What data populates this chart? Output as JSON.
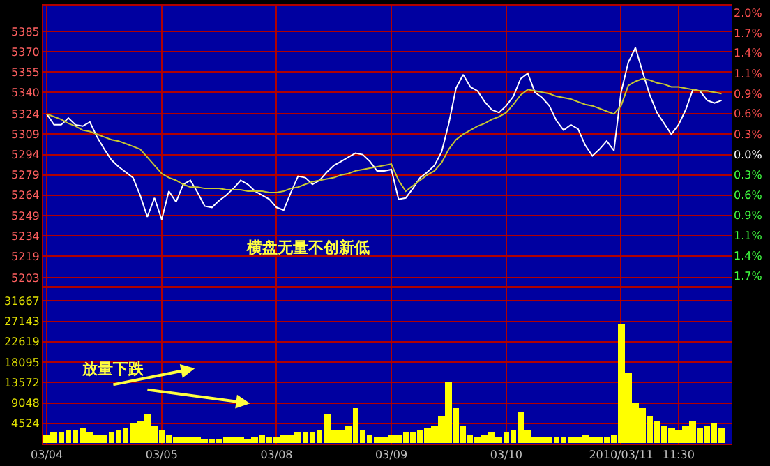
{
  "chart_data": [
    {
      "type": "line",
      "categories": [
        null,
        null,
        null,
        null,
        null,
        null,
        null,
        null,
        null,
        null,
        null,
        null,
        null,
        null,
        null,
        null,
        null,
        null,
        null,
        null,
        null,
        null,
        null,
        null,
        null,
        null,
        null,
        null,
        null,
        null,
        null,
        null,
        null,
        null,
        null,
        null,
        null,
        null,
        null,
        null,
        null,
        null,
        null,
        null,
        null,
        null,
        null,
        null,
        null,
        null,
        null,
        null,
        null,
        null,
        null,
        null,
        null,
        null,
        null,
        null,
        null,
        null,
        null,
        null,
        null,
        null,
        null,
        null,
        null,
        null,
        null,
        null,
        null,
        null,
        null,
        null,
        null,
        null,
        null,
        null,
        null,
        null,
        null,
        null,
        null,
        null,
        null,
        null,
        null,
        null,
        null,
        null,
        null,
        null,
        null,
        null
      ],
      "ylim": [
        5197,
        5404
      ],
      "y2lim": [
        -1.84,
        2.08
      ],
      "yticks": [
        5385,
        5370,
        5355,
        5340,
        5324,
        5309,
        5294,
        5279,
        5264,
        5249,
        5234,
        5219,
        5203
      ],
      "y2ticks": [
        {
          "value": 1.98,
          "label": "2.0%"
        },
        {
          "value": 1.7,
          "label": "1.7%"
        },
        {
          "value": 1.42,
          "label": "1.4%"
        },
        {
          "value": 1.13,
          "label": "1.1%"
        },
        {
          "value": 0.85,
          "label": "0.9%"
        },
        {
          "value": 0.57,
          "label": "0.6%"
        },
        {
          "value": 0.28,
          "label": "0.3%"
        },
        {
          "value": 0,
          "label": "0.0%"
        },
        {
          "value": -0.28,
          "label": "0.3%"
        },
        {
          "value": -0.57,
          "label": "0.6%"
        },
        {
          "value": -0.85,
          "label": "0.9%"
        },
        {
          "value": -1.13,
          "label": "1.1%"
        },
        {
          "value": -1.42,
          "label": "1.4%"
        },
        {
          "value": -1.7,
          "label": "1.7%"
        }
      ],
      "tick_labels": "y",
      "grid": true,
      "series": [
        {
          "color": "#ffffff",
          "values": [
            5324,
            5316,
            5316,
            5321,
            5316,
            5315,
            5318,
            5307,
            5298,
            5290,
            5285,
            5281,
            5277,
            5264,
            5248,
            5262,
            5246,
            5267,
            5259,
            5272,
            5275,
            5266,
            5256,
            5255,
            5260,
            5264,
            5269,
            5275,
            5272,
            5267,
            5264,
            5261,
            5255,
            5253,
            5266,
            5278,
            5277,
            5272,
            5275,
            5281,
            5286,
            5289,
            5292,
            5295,
            5294,
            5289,
            5282,
            5282,
            5283,
            5261,
            5262,
            5269,
            5277,
            5281,
            5286,
            5296,
            5317,
            5343,
            5353,
            5344,
            5341,
            5333,
            5327,
            5325,
            5330,
            5337,
            5350,
            5354,
            5340,
            5336,
            5330,
            5319,
            5312,
            5316,
            5313,
            5301,
            5293,
            5298,
            5304,
            5297,
            5340,
            5362,
            5373,
            5355,
            5338,
            5325,
            5317,
            5309,
            5316,
            5327,
            5342,
            5341,
            5334,
            5332,
            5334,
            null
          ]
        },
        {
          "color": "#c8c832",
          "values": [
            5324,
            5322,
            5320,
            5317,
            5315,
            5312,
            5311,
            5309,
            5307,
            5305,
            5304,
            5302,
            5300,
            5298,
            5292,
            5286,
            5280,
            5277,
            5275,
            5272,
            5270,
            5270,
            5269,
            5269,
            5269,
            5268,
            5268,
            5268,
            5267,
            5267,
            5267,
            5266,
            5266,
            5267,
            5269,
            5270,
            5272,
            5274,
            5275,
            5276,
            5277,
            5279,
            5280,
            5282,
            5283,
            5284,
            5285,
            5286,
            5287,
            5275,
            5267,
            5271,
            5275,
            5279,
            5282,
            5288,
            5298,
            5305,
            5309,
            5312,
            5315,
            5317,
            5320,
            5322,
            5325,
            5331,
            5338,
            5342,
            5341,
            5340,
            5339,
            5337,
            5336,
            5335,
            5333,
            5331,
            5330,
            5328,
            5326,
            5324,
            5330,
            5345,
            5348,
            5350,
            5349,
            5347,
            5346,
            5344,
            5344,
            5343,
            5342,
            5341,
            5341,
            5340,
            5339,
            null
          ]
        }
      ],
      "annotations": [
        "横盘无量不创新低"
      ]
    },
    {
      "type": "bar",
      "categories": [
        "03/04",
        null,
        null,
        null,
        null,
        null,
        null,
        null,
        null,
        null,
        null,
        null,
        null,
        null,
        null,
        null,
        "03/05",
        null,
        null,
        null,
        null,
        null,
        null,
        null,
        null,
        null,
        null,
        null,
        null,
        null,
        null,
        null,
        "03/08",
        null,
        null,
        null,
        null,
        null,
        null,
        null,
        null,
        null,
        null,
        null,
        null,
        null,
        null,
        null,
        "03/09",
        null,
        null,
        null,
        null,
        null,
        null,
        null,
        null,
        null,
        null,
        null,
        null,
        null,
        null,
        null,
        "03/10",
        null,
        null,
        null,
        null,
        null,
        null,
        null,
        null,
        null,
        null,
        null,
        null,
        null,
        null,
        null,
        "2010/03/11",
        null,
        null,
        null,
        null,
        null,
        null,
        null,
        "11:30",
        null,
        null,
        null,
        null,
        null,
        null,
        null
      ],
      "ylim": [
        0,
        34500
      ],
      "yticks": [
        4524,
        9048,
        13572,
        18095,
        22619,
        27143,
        31667
      ],
      "grid": true,
      "series": [
        {
          "color": "#ffff00",
          "values": [
            2000,
            2500,
            2500,
            3000,
            3000,
            3500,
            2500,
            2000,
            2000,
            2500,
            3000,
            3500,
            4500,
            5000,
            6500,
            4000,
            3000,
            2000,
            1500,
            1500,
            1500,
            1500,
            1200,
            1200,
            1200,
            1500,
            1500,
            1500,
            1200,
            1500,
            2000,
            1500,
            1500,
            2000,
            2000,
            2500,
            2500,
            2500,
            3000,
            6500,
            3000,
            3000,
            4000,
            8000,
            3000,
            2000,
            1500,
            1500,
            2000,
            2000,
            2500,
            2500,
            3000,
            3500,
            4000,
            6000,
            13700,
            8000,
            4000,
            2000,
            1500,
            2000,
            2500,
            1500,
            2500,
            3000,
            7000,
            3000,
            1500,
            1500,
            1500,
            1500,
            1500,
            1500,
            1500,
            2000,
            1500,
            1500,
            1500,
            2000,
            26500,
            15500,
            9000,
            8000,
            6000,
            5000,
            4000,
            3500,
            3000,
            4000,
            5000,
            3500,
            4000,
            4500,
            3500,
            null
          ]
        }
      ],
      "annotations": [
        "放量下跌"
      ]
    }
  ]
}
